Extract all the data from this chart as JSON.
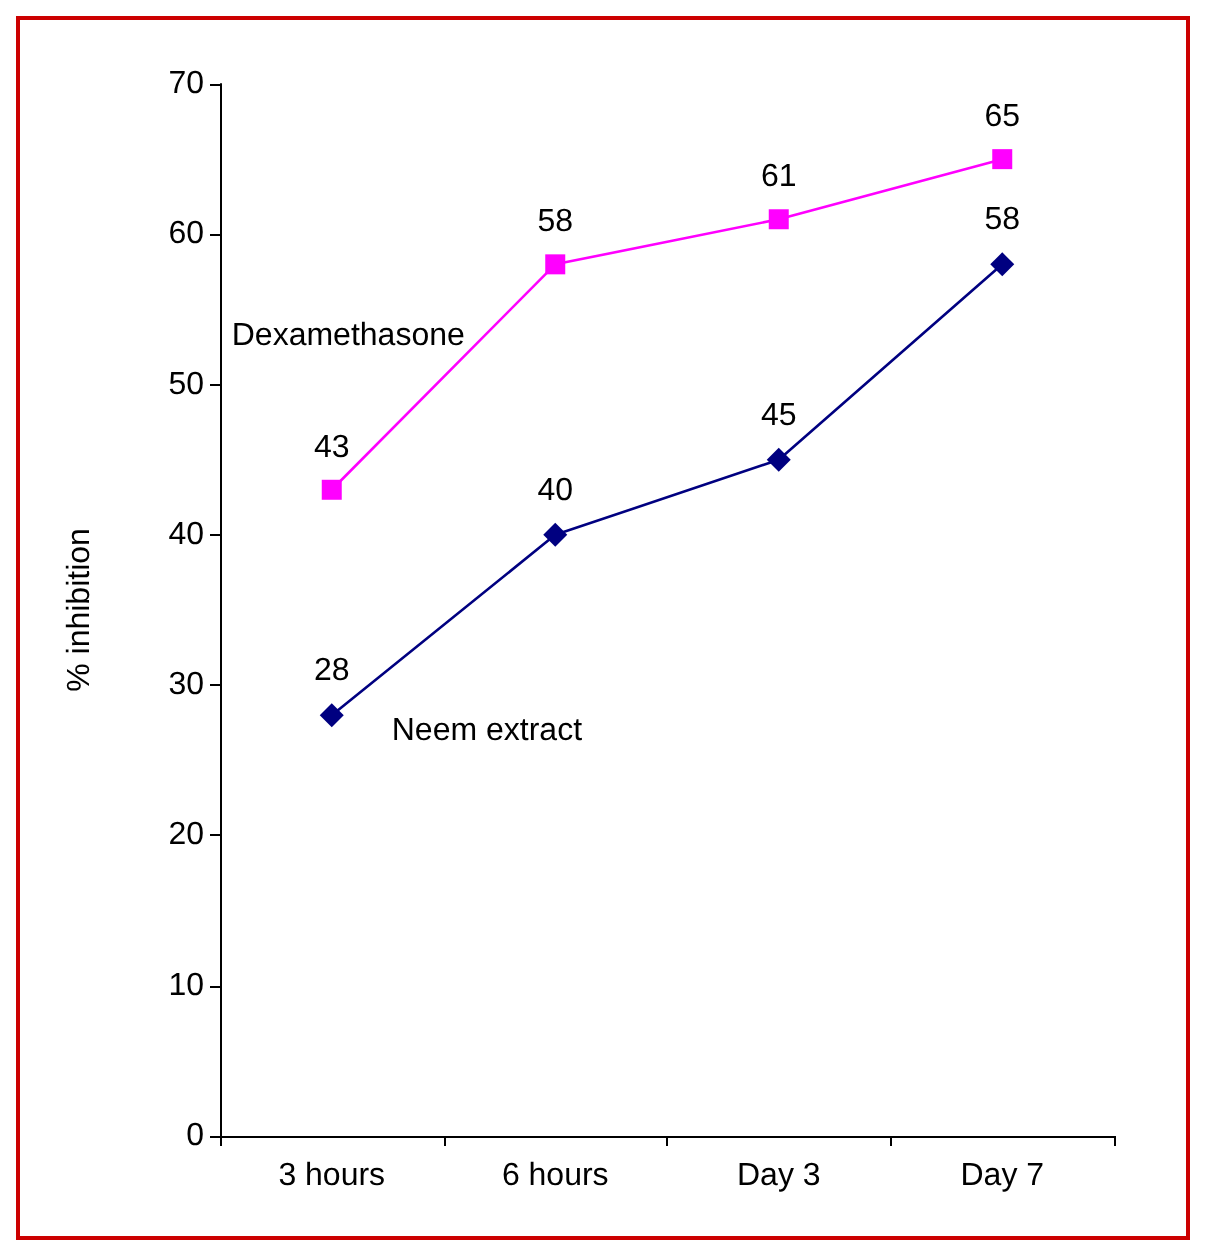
{
  "chart_data": {
    "type": "line",
    "ylabel": "% inhibition",
    "categories": [
      "3 hours",
      "6 hours",
      "Day 3",
      "Day 7"
    ],
    "series": [
      {
        "name": "Dexamethasone",
        "color": "#ff00ff",
        "marker": "square",
        "values": [
          43,
          58,
          61,
          65
        ]
      },
      {
        "name": "Neem extract",
        "color": "#000080",
        "marker": "diamond",
        "values": [
          28,
          40,
          45,
          58
        ]
      }
    ],
    "ylim": [
      0,
      70
    ],
    "yticks": [
      0,
      10,
      20,
      30,
      40,
      50,
      60,
      70
    ],
    "data_labels": true,
    "grid": false,
    "legend": false
  }
}
